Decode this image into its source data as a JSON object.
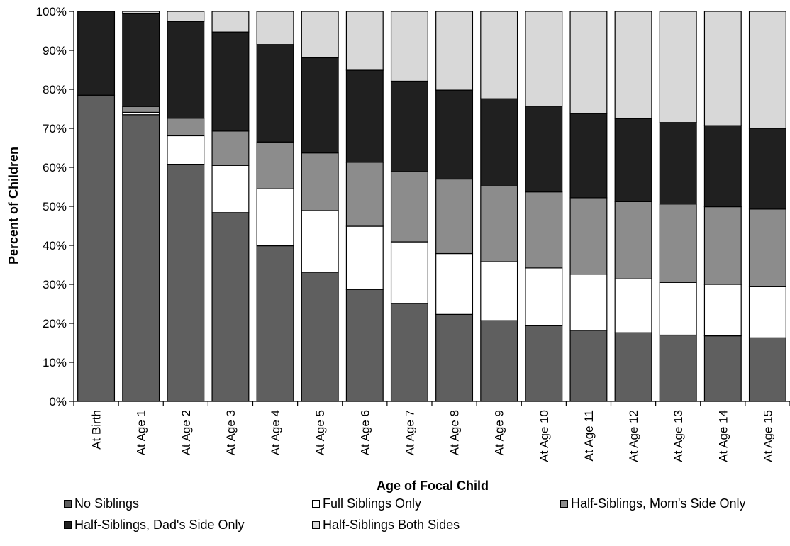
{
  "chart_data": {
    "type": "bar",
    "stacked": true,
    "categories": [
      "At Birth",
      "At Age 1",
      "At Age 2",
      "At Age 3",
      "At Age 4",
      "At Age 5",
      "At Age 6",
      "At Age 7",
      "At Age 8",
      "At Age 9",
      "At Age 10",
      "At Age 11",
      "At Age 12",
      "At Age 13",
      "At Age 14",
      "At Age 15"
    ],
    "series": [
      {
        "name": "No Siblings",
        "color": "#5f5f5f",
        "values": [
          78.5,
          73.5,
          60.8,
          48.4,
          39.9,
          33.1,
          28.7,
          25.1,
          22.3,
          20.7,
          19.4,
          18.2,
          17.6,
          17.0,
          16.8,
          16.3
        ]
      },
      {
        "name": "Full Siblings Only",
        "color": "#ffffff",
        "values": [
          0,
          0.6,
          7.3,
          12.1,
          14.6,
          15.8,
          16.2,
          15.8,
          15.6,
          15.1,
          14.8,
          14.4,
          13.8,
          13.5,
          13.2,
          13.1
        ]
      },
      {
        "name": "Half-Siblings, Mom's Side Only",
        "color": "#8c8c8c",
        "values": [
          0,
          1.5,
          4.5,
          8.8,
          12.0,
          14.8,
          16.4,
          18.0,
          19.1,
          19.4,
          19.5,
          19.6,
          19.8,
          20.1,
          19.9,
          19.9
        ]
      },
      {
        "name": "Half-Siblings, Dad's Side Only",
        "color": "#202020",
        "values": [
          21.5,
          23.8,
          24.8,
          25.4,
          25.0,
          24.4,
          23.6,
          23.2,
          22.8,
          22.4,
          22.0,
          21.6,
          21.3,
          20.9,
          20.8,
          20.7
        ]
      },
      {
        "name": "Half-Siblings Both Sides",
        "color": "#d8d8d8",
        "values": [
          0,
          0.6,
          2.6,
          5.3,
          8.5,
          11.9,
          15.1,
          17.9,
          20.2,
          22.4,
          24.3,
          26.2,
          27.5,
          28.5,
          29.3,
          30.0
        ]
      }
    ],
    "xlabel": "Age of Focal Child",
    "ylabel": "Percent of Children",
    "ylim": [
      0,
      100
    ],
    "yticks": [
      "0%",
      "10%",
      "20%",
      "30%",
      "40%",
      "50%",
      "60%",
      "70%",
      "80%",
      "90%",
      "100%"
    ],
    "grid": false,
    "legend_position": "bottom"
  }
}
